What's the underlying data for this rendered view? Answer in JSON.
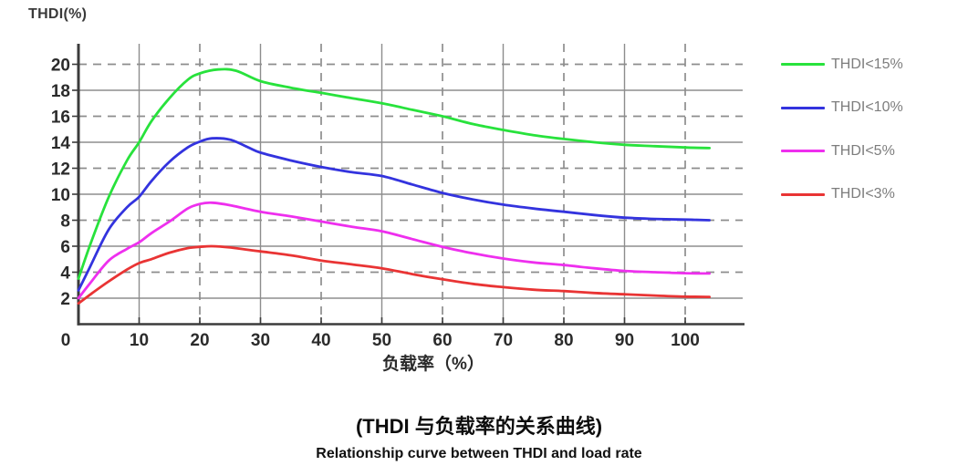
{
  "chart_data": {
    "type": "line",
    "title": "(THDI 与负载率的关系曲线)",
    "subtitle": "Relationship curve between THDI and load rate",
    "ylabel": "THDI(%)",
    "xlabel": "负载率（%）",
    "x_ticks": [
      0,
      10,
      20,
      30,
      40,
      50,
      60,
      70,
      80,
      90,
      100
    ],
    "y_ticks": [
      2,
      4,
      6,
      8,
      10,
      12,
      14,
      16,
      18,
      20
    ],
    "xlim": [
      0,
      110
    ],
    "ylim": [
      0,
      21.5
    ],
    "grid": {
      "solid_x": [
        10,
        30,
        50,
        70,
        90
      ],
      "dashed_x": [
        20,
        40,
        60,
        80,
        100
      ],
      "solid_y": [
        2,
        6,
        10,
        14,
        18
      ],
      "dashed_y": [
        4,
        8,
        12,
        16,
        20
      ]
    },
    "legend": {
      "position": "right",
      "text_color": "#7d7d7d"
    },
    "colors": {
      "axis": "#3b3b3b",
      "grid": "#8d8d8d",
      "tick_label": "#2b2b2b"
    },
    "series": [
      {
        "name": "THDI<15%",
        "color": "#28e23c",
        "points": [
          [
            0,
            3.5
          ],
          [
            2,
            6.2
          ],
          [
            5,
            9.8
          ],
          [
            8,
            12.6
          ],
          [
            10,
            14.0
          ],
          [
            12,
            15.6
          ],
          [
            15,
            17.4
          ],
          [
            18,
            18.8
          ],
          [
            20,
            19.3
          ],
          [
            23,
            19.6
          ],
          [
            26,
            19.5
          ],
          [
            30,
            18.7
          ],
          [
            35,
            18.2
          ],
          [
            40,
            17.8
          ],
          [
            45,
            17.4
          ],
          [
            50,
            17.0
          ],
          [
            55,
            16.5
          ],
          [
            60,
            16.0
          ],
          [
            65,
            15.4
          ],
          [
            70,
            14.95
          ],
          [
            75,
            14.55
          ],
          [
            80,
            14.25
          ],
          [
            85,
            14.0
          ],
          [
            90,
            13.8
          ],
          [
            95,
            13.7
          ],
          [
            100,
            13.6
          ],
          [
            104,
            13.55
          ]
        ]
      },
      {
        "name": "THDI<10%",
        "color": "#3333de",
        "points": [
          [
            0,
            2.6
          ],
          [
            2,
            4.5
          ],
          [
            5,
            7.3
          ],
          [
            8,
            9.0
          ],
          [
            10,
            9.8
          ],
          [
            12,
            11.0
          ],
          [
            15,
            12.5
          ],
          [
            18,
            13.6
          ],
          [
            20,
            14.05
          ],
          [
            22,
            14.3
          ],
          [
            25,
            14.2
          ],
          [
            28,
            13.6
          ],
          [
            30,
            13.2
          ],
          [
            35,
            12.6
          ],
          [
            40,
            12.1
          ],
          [
            45,
            11.7
          ],
          [
            50,
            11.4
          ],
          [
            55,
            10.75
          ],
          [
            60,
            10.1
          ],
          [
            65,
            9.6
          ],
          [
            70,
            9.2
          ],
          [
            75,
            8.9
          ],
          [
            80,
            8.65
          ],
          [
            85,
            8.4
          ],
          [
            90,
            8.2
          ],
          [
            95,
            8.1
          ],
          [
            100,
            8.05
          ],
          [
            104,
            8.0
          ]
        ]
      },
      {
        "name": "THDI<5%",
        "color": "#ee2fee",
        "points": [
          [
            0,
            2.0
          ],
          [
            2,
            3.2
          ],
          [
            5,
            4.9
          ],
          [
            8,
            5.8
          ],
          [
            10,
            6.3
          ],
          [
            12,
            7.0
          ],
          [
            15,
            7.9
          ],
          [
            18,
            8.9
          ],
          [
            20,
            9.25
          ],
          [
            22,
            9.35
          ],
          [
            25,
            9.15
          ],
          [
            30,
            8.65
          ],
          [
            35,
            8.3
          ],
          [
            40,
            7.9
          ],
          [
            45,
            7.5
          ],
          [
            50,
            7.15
          ],
          [
            55,
            6.55
          ],
          [
            60,
            5.95
          ],
          [
            65,
            5.45
          ],
          [
            70,
            5.05
          ],
          [
            75,
            4.75
          ],
          [
            80,
            4.55
          ],
          [
            85,
            4.3
          ],
          [
            90,
            4.1
          ],
          [
            95,
            4.0
          ],
          [
            100,
            3.92
          ],
          [
            104,
            3.9
          ]
        ]
      },
      {
        "name": "THDI<3%",
        "color": "#e93434",
        "points": [
          [
            0,
            1.6
          ],
          [
            2,
            2.3
          ],
          [
            5,
            3.3
          ],
          [
            8,
            4.2
          ],
          [
            10,
            4.7
          ],
          [
            12,
            5.0
          ],
          [
            15,
            5.5
          ],
          [
            18,
            5.85
          ],
          [
            20,
            5.95
          ],
          [
            22,
            6.0
          ],
          [
            25,
            5.9
          ],
          [
            30,
            5.6
          ],
          [
            35,
            5.3
          ],
          [
            40,
            4.9
          ],
          [
            45,
            4.6
          ],
          [
            50,
            4.3
          ],
          [
            55,
            3.85
          ],
          [
            60,
            3.45
          ],
          [
            65,
            3.1
          ],
          [
            70,
            2.85
          ],
          [
            75,
            2.65
          ],
          [
            80,
            2.55
          ],
          [
            85,
            2.4
          ],
          [
            90,
            2.3
          ],
          [
            95,
            2.2
          ],
          [
            100,
            2.12
          ],
          [
            104,
            2.1
          ]
        ]
      }
    ]
  }
}
